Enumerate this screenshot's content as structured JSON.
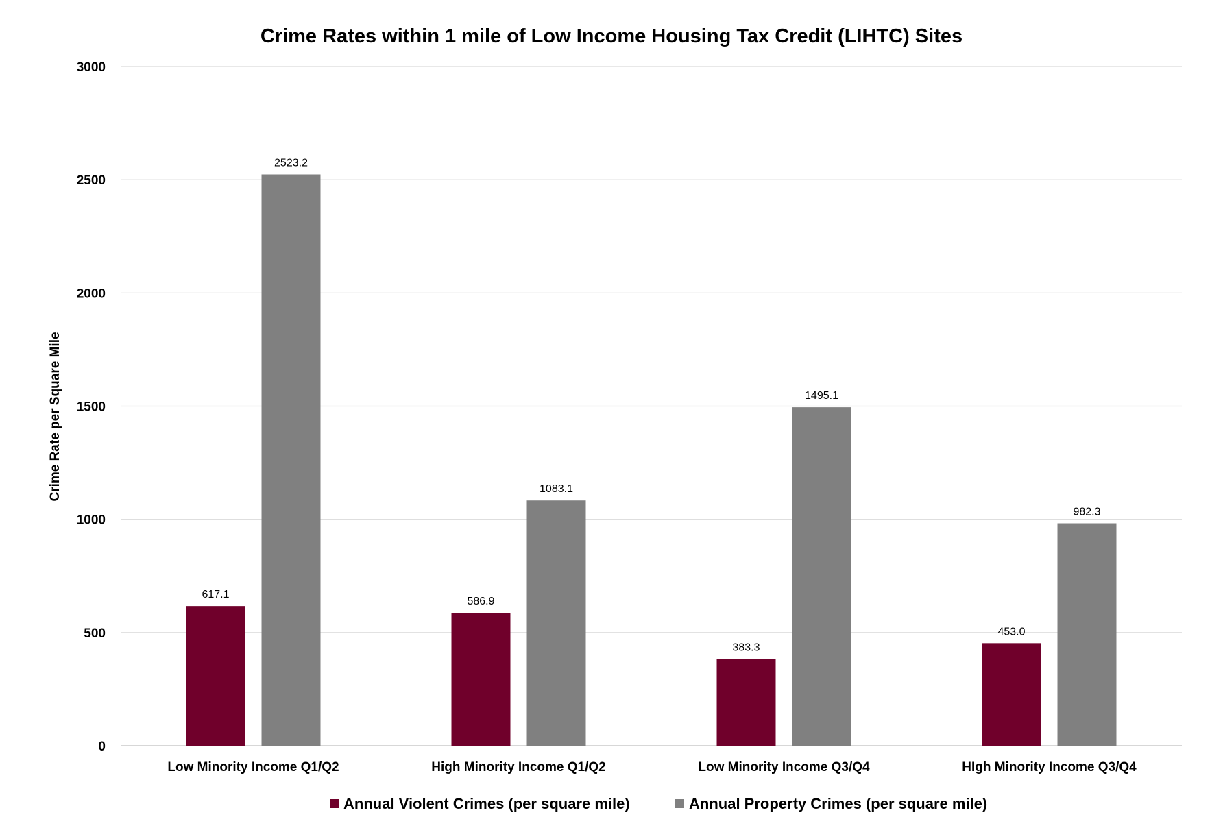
{
  "chart_data": {
    "type": "bar",
    "title": "Crime Rates within 1 mile of Low Income Housing Tax Credit (LIHTC) Sites",
    "xlabel": "",
    "ylabel": "Crime Rate per Square Mile",
    "ylim": [
      0,
      3000
    ],
    "yticks": [
      "0",
      "500",
      "1000",
      "1500",
      "2000",
      "2500",
      "3000"
    ],
    "ytick_values": [
      0,
      500,
      1000,
      1500,
      2000,
      2500,
      3000
    ],
    "grid": true,
    "legend_position": "bottom",
    "categories": [
      "Low Minority Income Q1/Q2",
      "High Minority Income Q1/Q2",
      "Low Minority Income Q3/Q4",
      "HIgh Minority Income Q3/Q4"
    ],
    "series": [
      {
        "name": "Annual Violent Crimes (per square mile)",
        "color": "#70002b",
        "values": [
          617.1,
          586.9,
          383.3,
          453.0
        ],
        "labels": [
          "617.1",
          "586.9",
          "383.3",
          "453.0"
        ]
      },
      {
        "name": "Annual Property Crimes (per square mile)",
        "color": "#808080",
        "values": [
          2523.2,
          1083.1,
          1495.1,
          982.3
        ],
        "labels": [
          "2523.2",
          "1083.1",
          "1495.1",
          "982.3"
        ]
      }
    ]
  }
}
